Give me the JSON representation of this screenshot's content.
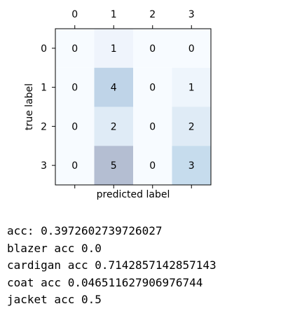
{
  "chart_data": {
    "type": "heatmap",
    "xlabel": "predicted label",
    "ylabel": "true label",
    "x_ticks": [
      "0",
      "1",
      "2",
      "3"
    ],
    "y_ticks": [
      "0",
      "1",
      "2",
      "3"
    ],
    "x_tick_position": "top",
    "matrix": [
      [
        0,
        1,
        0,
        0
      ],
      [
        0,
        4,
        0,
        1
      ],
      [
        0,
        2,
        0,
        2
      ],
      [
        0,
        5,
        0,
        3
      ]
    ],
    "cell_colors": [
      [
        "#f7fbff",
        "#eff4fc",
        "#f7fbff",
        "#f7fbff"
      ],
      [
        "#f7fbff",
        "#bfd4e8",
        "#f7fbff",
        "#eef5fc"
      ],
      [
        "#f7fbff",
        "#dfebf6",
        "#f7fbff",
        "#dfebf6"
      ],
      [
        "#f7fbff",
        "#b4bed2",
        "#f7fbff",
        "#c6dced"
      ]
    ],
    "grid": false
  },
  "output": {
    "lines": [
      "acc: 0.3972602739726027",
      "blazer acc 0.0",
      "cardigan acc 0.7142857142857143",
      "coat acc 0.046511627906976744",
      "jacket acc 0.5"
    ]
  }
}
